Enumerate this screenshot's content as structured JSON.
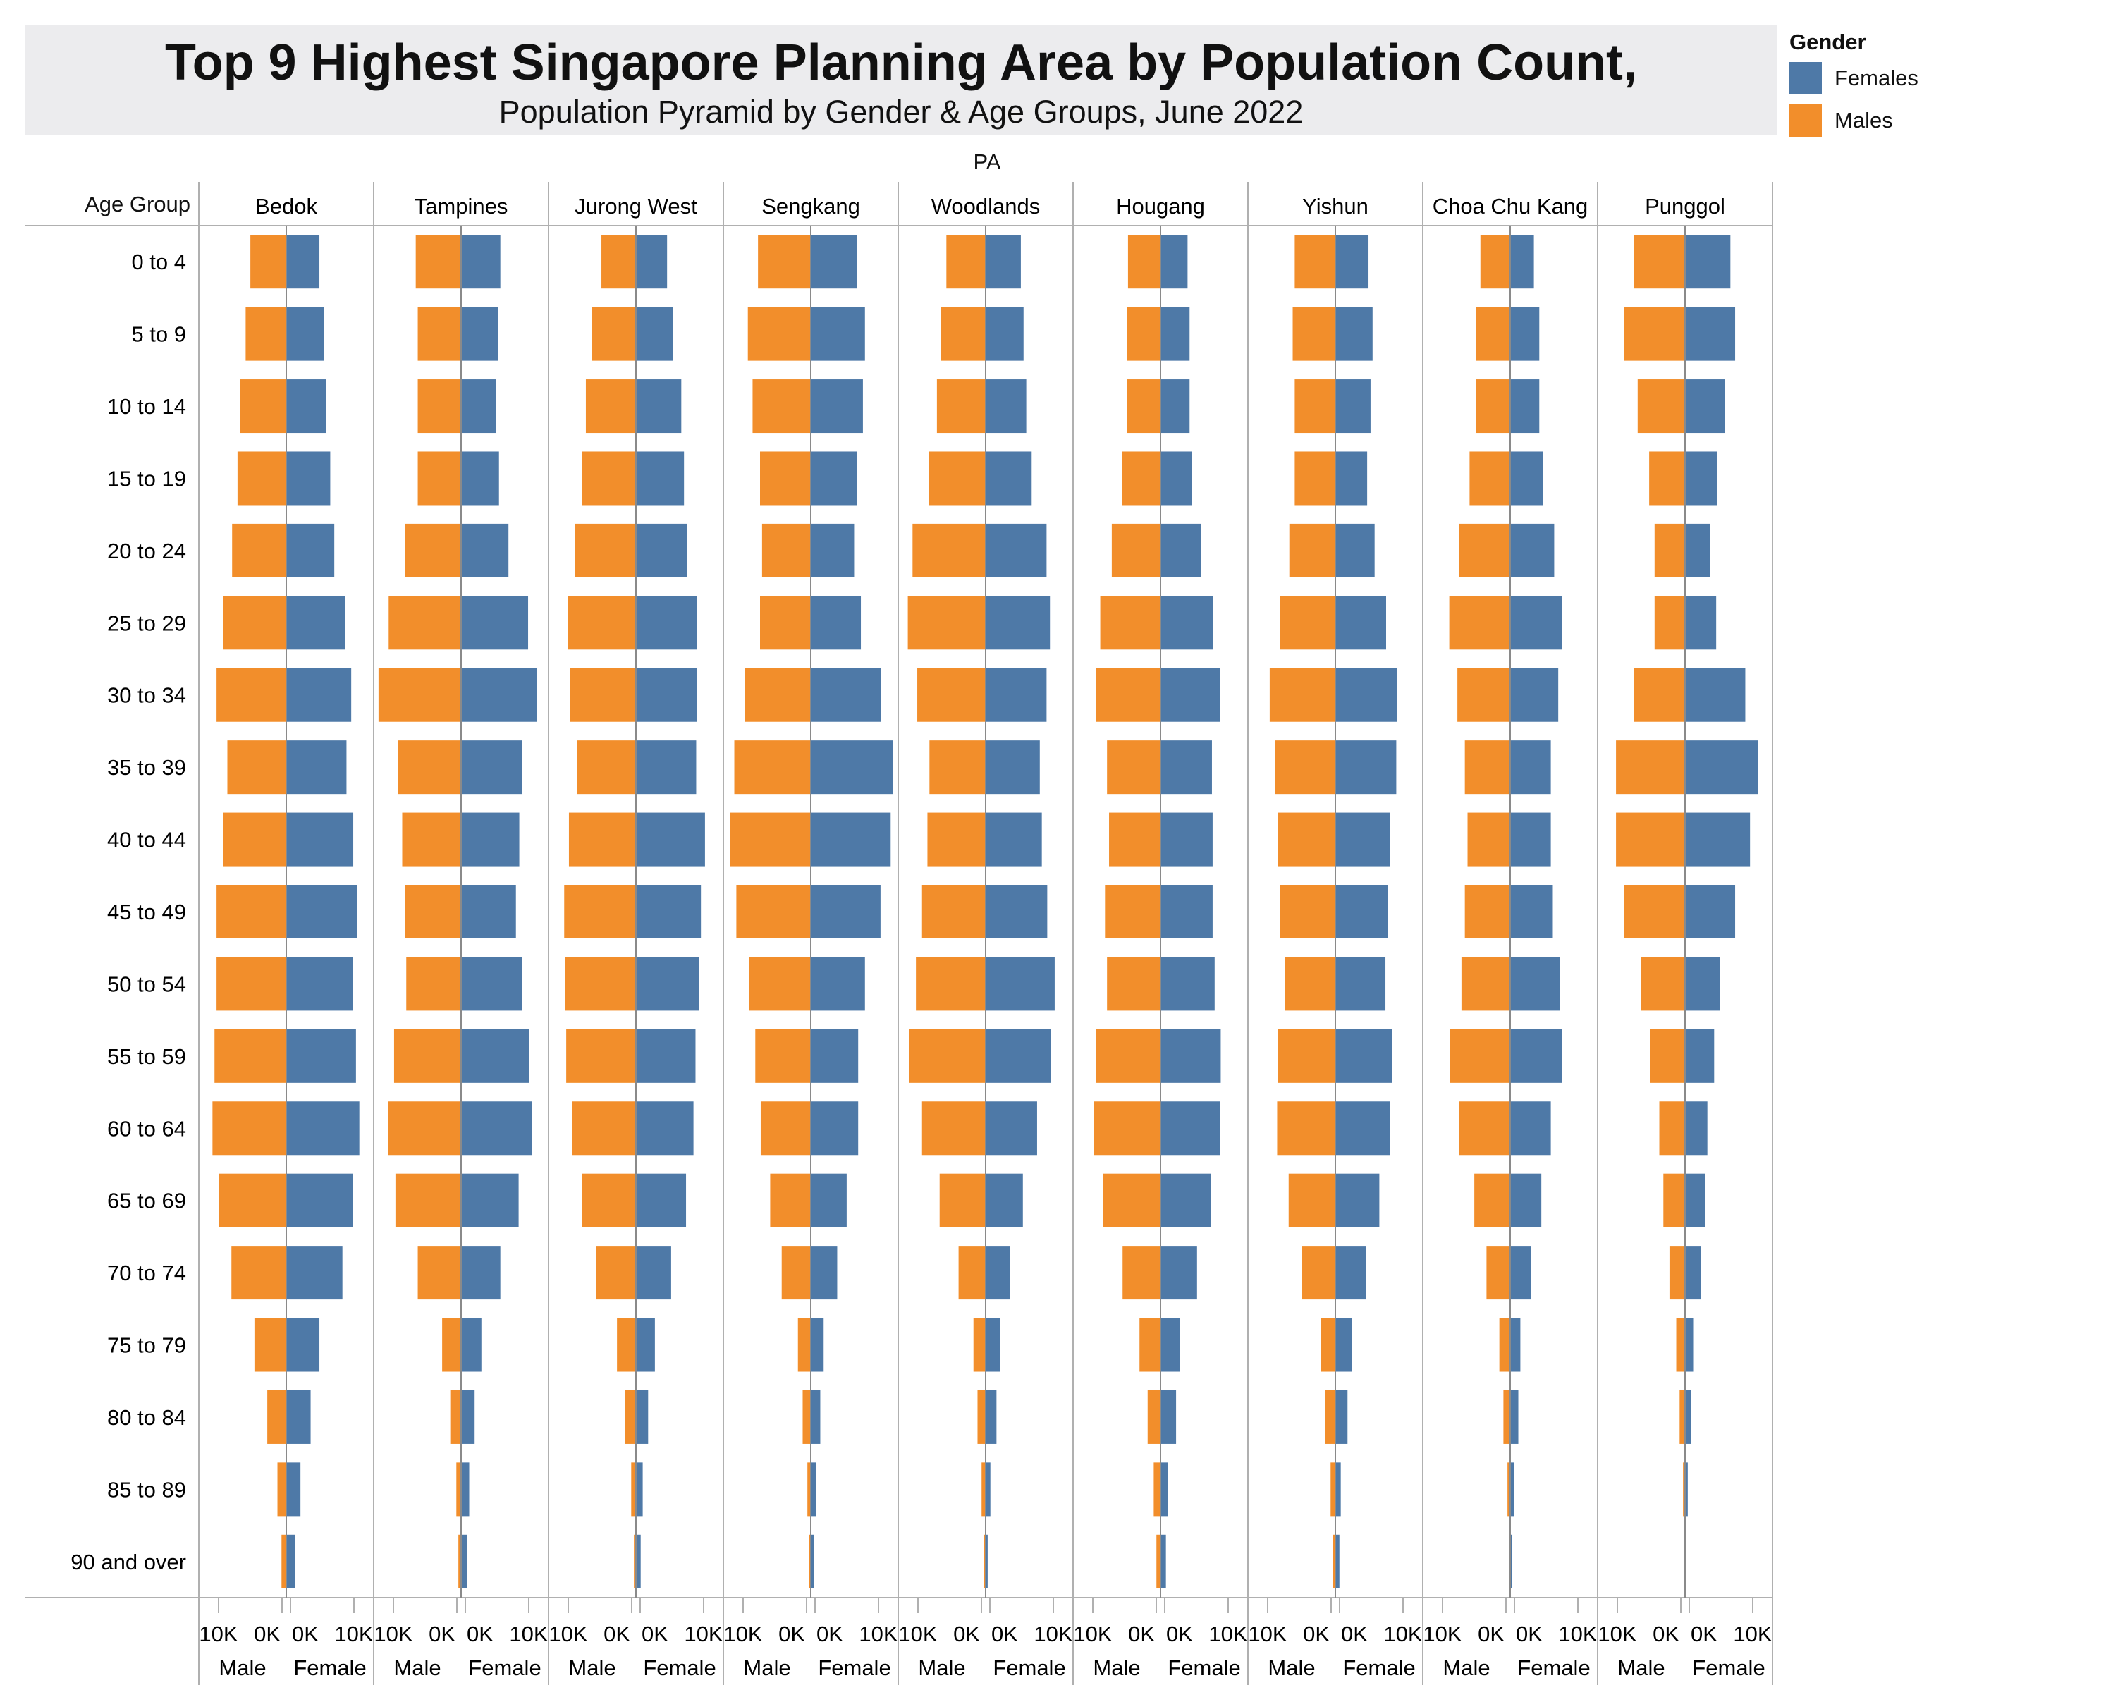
{
  "chart_data": {
    "type": "bar",
    "title": "Top 9 Highest Singapore Planning Area by Population Count,",
    "subtitle": "Population Pyramid by Gender & Age Groups, June 2022",
    "column_header": "PA",
    "row_header": "Age Group",
    "legend": {
      "title": "Gender",
      "placement": "top-right",
      "items": [
        {
          "name": "Females",
          "color": "#4e79a7"
        },
        {
          "name": "Males",
          "color": "#f28e2b"
        }
      ]
    },
    "age_groups": [
      "0 to 4",
      "5 to 9",
      "10 to 14",
      "15 to 19",
      "20 to 24",
      "25 to 29",
      "30 to 34",
      "35 to 39",
      "40 to 44",
      "45 to 49",
      "50 to 54",
      "55 to 59",
      "60 to 64",
      "65 to 69",
      "70 to 74",
      "75 to 79",
      "80 to 84",
      "85 to 89",
      "90 and over"
    ],
    "x_axis": {
      "male_title": "Male",
      "female_title": "Female",
      "male_ticks": [
        "10K",
        "0K"
      ],
      "female_ticks": [
        "0K",
        "10K"
      ],
      "range": [
        0,
        12500
      ]
    },
    "grid": false,
    "areas": [
      {
        "name": "Bedok",
        "males": [
          5300,
          6000,
          6800,
          7200,
          8000,
          9300,
          10300,
          8700,
          9300,
          10300,
          10300,
          10600,
          10900,
          9900,
          8100,
          4700,
          2800,
          1300,
          700
        ],
        "females": [
          4900,
          5600,
          5900,
          6500,
          7100,
          8700,
          9600,
          8900,
          9900,
          10500,
          9800,
          10300,
          10800,
          9800,
          8300,
          4900,
          3600,
          2100,
          1300
        ]
      },
      {
        "name": "Tampines",
        "males": [
          6700,
          6400,
          6400,
          6400,
          8300,
          10700,
          12200,
          9300,
          8700,
          8300,
          8100,
          9900,
          10800,
          9700,
          6400,
          2800,
          1600,
          700,
          400
        ],
        "females": [
          5800,
          5500,
          5200,
          5600,
          7000,
          9900,
          11200,
          9000,
          8600,
          8100,
          9000,
          10100,
          10500,
          8500,
          5800,
          3000,
          2000,
          1200,
          900
        ]
      },
      {
        "name": "Jurong West",
        "males": [
          5100,
          6500,
          7400,
          8000,
          9000,
          10000,
          9700,
          8700,
          9900,
          10600,
          10500,
          10300,
          9400,
          8000,
          5900,
          2800,
          1600,
          700,
          300
        ],
        "females": [
          4600,
          5500,
          6700,
          7100,
          7600,
          9000,
          9000,
          8900,
          10200,
          9600,
          9300,
          8800,
          8500,
          7400,
          5200,
          2800,
          1800,
          1000,
          700
        ]
      },
      {
        "name": "Sengkang",
        "males": [
          7800,
          9300,
          8600,
          7500,
          7200,
          7500,
          9700,
          11300,
          11900,
          11000,
          9100,
          8200,
          7400,
          6000,
          4300,
          1900,
          1200,
          500,
          300
        ],
        "females": [
          6800,
          8000,
          7700,
          6800,
          6400,
          7400,
          10400,
          12100,
          11800,
          10300,
          8000,
          7000,
          7000,
          5300,
          3900,
          1900,
          1400,
          800,
          500
        ]
      },
      {
        "name": "Woodlands",
        "males": [
          5800,
          6600,
          7200,
          8400,
          10800,
          11500,
          10100,
          8300,
          8600,
          9400,
          10300,
          11300,
          9400,
          6800,
          4000,
          1800,
          1200,
          600,
          300
        ],
        "females": [
          5200,
          5600,
          6000,
          6800,
          9000,
          9500,
          9000,
          8000,
          8300,
          9100,
          10200,
          9600,
          7600,
          5500,
          3600,
          2100,
          1600,
          700,
          300
        ]
      },
      {
        "name": "Hougang",
        "males": [
          4800,
          5000,
          5000,
          5700,
          7200,
          8900,
          9500,
          7900,
          7600,
          8200,
          7900,
          9500,
          9800,
          8500,
          5600,
          3100,
          1900,
          1000,
          600
        ],
        "females": [
          4000,
          4300,
          4300,
          4600,
          6000,
          7800,
          8800,
          7600,
          7700,
          7700,
          8000,
          8900,
          8800,
          7500,
          5400,
          2900,
          2300,
          1100,
          800
        ]
      },
      {
        "name": "Yishun",
        "males": [
          6000,
          6300,
          6000,
          6000,
          6800,
          8200,
          9700,
          8900,
          8500,
          8200,
          7500,
          8500,
          8600,
          6900,
          4900,
          2100,
          1500,
          700,
          400
        ],
        "females": [
          4900,
          5500,
          5200,
          4700,
          5800,
          7500,
          9100,
          9000,
          8100,
          7800,
          7400,
          8400,
          8100,
          6500,
          4500,
          2400,
          1800,
          800,
          600
        ]
      },
      {
        "name": "Choa Chu Kang",
        "males": [
          4400,
          5100,
          5100,
          6000,
          7500,
          9000,
          7800,
          6700,
          6300,
          6700,
          7200,
          8900,
          7500,
          5300,
          3500,
          1600,
          1000,
          400,
          200
        ],
        "females": [
          3500,
          4300,
          4300,
          4800,
          6500,
          7700,
          7100,
          6000,
          6000,
          6300,
          7300,
          7700,
          6000,
          4600,
          3100,
          1500,
          1200,
          600,
          300
        ]
      },
      {
        "name": "Punggol",
        "males": [
          7600,
          9000,
          7000,
          5300,
          4500,
          4500,
          7600,
          10200,
          10200,
          9000,
          6500,
          5200,
          3800,
          3200,
          2300,
          1300,
          800,
          300,
          100
        ],
        "females": [
          6700,
          7400,
          5900,
          4700,
          3700,
          4600,
          8900,
          10800,
          9600,
          7400,
          5200,
          4300,
          3300,
          3000,
          2300,
          1200,
          900,
          400,
          200
        ]
      }
    ]
  }
}
